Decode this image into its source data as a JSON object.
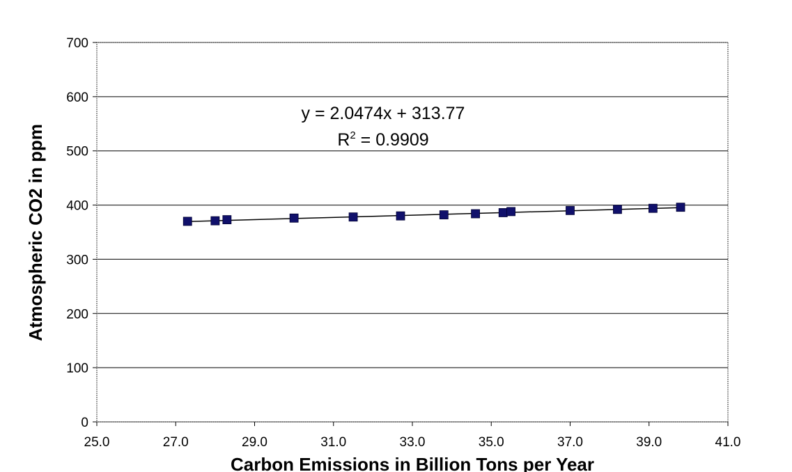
{
  "chart_data": {
    "type": "scatter",
    "title": "",
    "xlabel": "Carbon Emissions in Billion Tons per Year",
    "ylabel": "Atmospheric CO2 in ppm",
    "xlim": [
      25.0,
      41.0
    ],
    "ylim": [
      0,
      700
    ],
    "x_ticks": [
      "25.0",
      "27.0",
      "29.0",
      "31.0",
      "33.0",
      "35.0",
      "37.0",
      "39.0",
      "41.0"
    ],
    "y_ticks": [
      "0",
      "100",
      "200",
      "300",
      "400",
      "500",
      "600",
      "700"
    ],
    "grid": true,
    "legend": "none",
    "series": [
      {
        "points": [
          {
            "x": 27.3,
            "y": 370
          },
          {
            "x": 28.0,
            "y": 371
          },
          {
            "x": 28.3,
            "y": 373
          },
          {
            "x": 30.0,
            "y": 376
          },
          {
            "x": 31.5,
            "y": 378
          },
          {
            "x": 32.7,
            "y": 380
          },
          {
            "x": 33.8,
            "y": 382
          },
          {
            "x": 34.6,
            "y": 384
          },
          {
            "x": 35.3,
            "y": 386
          },
          {
            "x": 35.5,
            "y": 388
          },
          {
            "x": 37.0,
            "y": 390
          },
          {
            "x": 38.2,
            "y": 392
          },
          {
            "x": 39.1,
            "y": 394
          },
          {
            "x": 39.8,
            "y": 396
          }
        ],
        "color": "#10106b"
      }
    ],
    "trendline": {
      "slope": 2.0474,
      "intercept": 313.77,
      "x_range": [
        27.3,
        39.8
      ],
      "equation": "y = 2.0474x + 313.77",
      "r_squared_prefix": "R",
      "r_squared_exp": "2",
      "r_squared_value": " = 0.9909"
    }
  }
}
